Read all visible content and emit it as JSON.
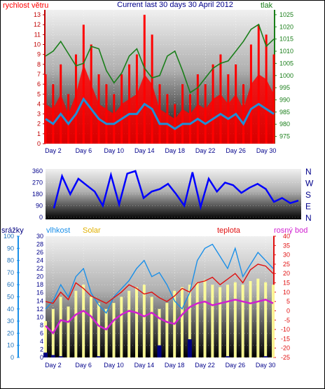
{
  "colors": {
    "wind": "#ff0000",
    "gust": "#ff0000",
    "wind_avg": "#1f8fd6",
    "pressure": "#1a7f1a",
    "direction": "#0000ff",
    "humidity": "#1a8fe8",
    "rain": "#000080",
    "solar": "#ffff99",
    "temperature": "#e01010",
    "dewpoint": "#d020d0",
    "title": "#00008b"
  },
  "chart_data": [
    {
      "type": "line",
      "title": "Current last 30 days 30 April 2012",
      "left_label": "rychlost větru",
      "right_label": "tlak",
      "left_ticks": [
        "0",
        "1",
        "2",
        "3",
        "4",
        "5",
        "6",
        "7",
        "8",
        "9",
        "10",
        "11",
        "12",
        "13"
      ],
      "right_ticks": [
        "975",
        "980",
        "985",
        "990",
        "995",
        "1000",
        "1005",
        "1010",
        "1015",
        "1020",
        "1025"
      ],
      "x_ticks": [
        "Day 2",
        "Day 6",
        "Day 10",
        "Day 14",
        "Day 18",
        "Day 22",
        "Day 26",
        "Day 30"
      ],
      "ylim_left": [
        0,
        13.5
      ],
      "ylim_right": [
        972,
        1027
      ],
      "xlim": [
        1,
        31
      ],
      "series": [
        {
          "key": "gust",
          "x": [
            1,
            2,
            3,
            4,
            5,
            6,
            7,
            8,
            9,
            10,
            11,
            12,
            13,
            14,
            15,
            16,
            17,
            18,
            19,
            20,
            21,
            22,
            23,
            24,
            25,
            26,
            27,
            28,
            29,
            30,
            31
          ],
          "values": [
            7,
            6,
            8,
            5,
            9,
            12,
            10,
            7,
            6,
            5,
            7,
            8,
            9,
            13,
            11,
            6,
            5,
            4,
            6,
            5,
            7,
            6,
            8,
            9,
            7,
            8,
            6,
            10,
            12,
            11,
            9
          ]
        },
        {
          "key": "wind",
          "x": [
            1,
            2,
            3,
            4,
            5,
            6,
            7,
            8,
            9,
            10,
            11,
            12,
            13,
            14,
            15,
            16,
            17,
            18,
            19,
            20,
            21,
            22,
            23,
            24,
            25,
            26,
            27,
            28,
            29,
            30,
            31
          ],
          "values": [
            4,
            3.5,
            5,
            3,
            5,
            8,
            6,
            4,
            3.5,
            3,
            4,
            4.5,
            5,
            7,
            6,
            3.5,
            3,
            2.5,
            3.5,
            3,
            4,
            3.5,
            4.5,
            5,
            4,
            5,
            3.5,
            6,
            7,
            6.5,
            5
          ]
        },
        {
          "key": "wind_avg",
          "x": [
            1,
            2,
            3,
            4,
            5,
            6,
            7,
            8,
            9,
            10,
            11,
            12,
            13,
            14,
            15,
            16,
            17,
            18,
            19,
            20,
            21,
            22,
            23,
            24,
            25,
            26,
            27,
            28,
            29,
            30,
            31
          ],
          "values": [
            2.5,
            2,
            3,
            2,
            3,
            4.5,
            3.5,
            2.5,
            2,
            2,
            2.5,
            3,
            3,
            4,
            3.5,
            2,
            2,
            1.5,
            2,
            2,
            2.5,
            2,
            2.5,
            3,
            2.5,
            3,
            2,
            3.5,
            4,
            3.5,
            3
          ]
        },
        {
          "key": "pressure",
          "axis": "right",
          "x": [
            1,
            2,
            3,
            4,
            5,
            6,
            7,
            8,
            9,
            10,
            11,
            12,
            13,
            14,
            15,
            16,
            17,
            18,
            19,
            20,
            21,
            22,
            23,
            24,
            25,
            26,
            27,
            28,
            29,
            30,
            31
          ],
          "values": [
            1008,
            1010,
            1014,
            1009,
            1004,
            1005,
            1012,
            1011,
            1002,
            997,
            1001,
            1008,
            1011,
            1003,
            999,
            1000,
            1008,
            1010,
            1002,
            993,
            995,
            999,
            1003,
            1005,
            1006,
            1010,
            1014,
            1019,
            1021,
            1012,
            1015
          ]
        }
      ]
    },
    {
      "type": "line",
      "title": "",
      "left_ticks": [
        "0",
        "90",
        "180",
        "270",
        "360"
      ],
      "right_ticks": [
        "N",
        "W",
        "S",
        "E",
        "N"
      ],
      "ylim": [
        0,
        360
      ],
      "xlim": [
        1,
        31
      ],
      "series": [
        {
          "key": "direction",
          "x": [
            1,
            2,
            3,
            4,
            5,
            6,
            7,
            8,
            9,
            10,
            11,
            12,
            13,
            14,
            15,
            16,
            17,
            18,
            19,
            20,
            21,
            22,
            23,
            24,
            25,
            26,
            27,
            28,
            29,
            30,
            31
          ],
          "values": [
            70,
            320,
            180,
            300,
            250,
            200,
            90,
            330,
            100,
            340,
            360,
            150,
            200,
            220,
            260,
            180,
            90,
            350,
            80,
            300,
            200,
            270,
            250,
            190,
            230,
            260,
            220,
            120,
            150,
            110,
            130
          ]
        }
      ]
    },
    {
      "type": "line",
      "title": "",
      "labels": {
        "rain": "srážky",
        "humidity": "vlhkost",
        "solar": "Solar",
        "temperature": "teplota",
        "dewpoint": "rosný bod"
      },
      "rain_ticks": [
        "0",
        "10",
        "20",
        "30",
        "40",
        "50",
        "60",
        "70",
        "80",
        "90",
        "100"
      ],
      "humidity_ticks": [
        "0",
        "2",
        "4",
        "6",
        "8",
        "10",
        "12",
        "14",
        "16",
        "18",
        "20",
        "22",
        "24",
        "26",
        "28",
        "30"
      ],
      "temp_ticks": [
        "-25",
        "-20",
        "-15",
        "-10",
        "-5",
        "0",
        "5",
        "10",
        "15",
        "20",
        "25",
        "30",
        "35",
        "40"
      ],
      "x_ticks": [
        "Day 2",
        "Day 6",
        "Day 10",
        "Day 14",
        "Day 18",
        "Day 22",
        "Day 26",
        "Day 30"
      ],
      "ylim_rain": [
        0,
        100
      ],
      "ylim_humidity": [
        0,
        30
      ],
      "ylim_temp": [
        -25,
        40
      ],
      "xlim": [
        1,
        31
      ],
      "series": [
        {
          "key": "temperature",
          "axis": "temp",
          "x": [
            1,
            2,
            3,
            4,
            5,
            6,
            7,
            8,
            9,
            10,
            11,
            12,
            13,
            14,
            15,
            16,
            17,
            18,
            19,
            20,
            21,
            22,
            23,
            24,
            25,
            26,
            27,
            28,
            29,
            30,
            31
          ],
          "values": [
            5,
            4,
            10,
            6,
            15,
            12,
            8,
            6,
            4,
            7,
            10,
            14,
            12,
            9,
            10,
            7,
            5,
            8,
            12,
            10,
            15,
            16,
            18,
            14,
            17,
            20,
            15,
            22,
            25,
            24,
            20
          ]
        },
        {
          "key": "dewpoint",
          "axis": "temp",
          "x": [
            1,
            2,
            3,
            4,
            5,
            6,
            7,
            8,
            9,
            10,
            11,
            12,
            13,
            14,
            15,
            16,
            17,
            18,
            19,
            20,
            21,
            22,
            23,
            24,
            25,
            26,
            27,
            28,
            29,
            30,
            31
          ],
          "values": [
            -8,
            -12,
            -5,
            -6,
            -2,
            0,
            -3,
            -8,
            -10,
            -5,
            -2,
            0,
            -1,
            -3,
            -1,
            -4,
            -6,
            -7,
            -2,
            2,
            4,
            5,
            3,
            4,
            5,
            6,
            5,
            4,
            5,
            6,
            4
          ]
        },
        {
          "key": "humidity",
          "axis": "humidity",
          "x": [
            1,
            2,
            3,
            4,
            5,
            6,
            7,
            8,
            9,
            10,
            11,
            12,
            13,
            14,
            15,
            16,
            17,
            18,
            19,
            20,
            21,
            22,
            23,
            24,
            25,
            26,
            27,
            28,
            29,
            30,
            31
          ],
          "values": [
            12,
            14,
            18,
            15,
            20,
            22,
            16,
            13,
            11,
            15,
            17,
            19,
            22,
            24,
            20,
            21,
            18,
            14,
            12,
            16,
            24,
            27,
            28,
            25,
            22,
            27,
            20,
            23,
            26,
            24,
            22
          ]
        },
        {
          "key": "solar",
          "axis": "rain",
          "x": [
            1,
            2,
            3,
            4,
            5,
            6,
            7,
            8,
            9,
            10,
            11,
            12,
            13,
            14,
            15,
            16,
            17,
            18,
            19,
            20,
            21,
            22,
            23,
            24,
            25,
            26,
            27,
            28,
            29,
            30,
            31
          ],
          "values": [
            30,
            40,
            50,
            42,
            55,
            60,
            50,
            45,
            40,
            45,
            50,
            55,
            58,
            60,
            50,
            40,
            45,
            55,
            58,
            60,
            62,
            64,
            60,
            58,
            60,
            62,
            60,
            63,
            65,
            62,
            60
          ]
        },
        {
          "key": "rain",
          "axis": "rain",
          "x": [
            1,
            2,
            3,
            4,
            5,
            6,
            7,
            8,
            9,
            10,
            11,
            12,
            13,
            14,
            15,
            16,
            17,
            18,
            19,
            20,
            21,
            22,
            23,
            24,
            25,
            26,
            27,
            28,
            29,
            30,
            31
          ],
          "values": [
            4,
            2,
            1,
            0,
            0,
            0,
            0,
            1,
            0,
            0,
            0,
            0,
            0,
            0,
            0,
            10,
            0,
            0,
            0,
            15,
            0,
            0,
            0,
            0,
            1,
            0,
            0,
            0,
            0,
            1,
            0
          ]
        }
      ]
    }
  ]
}
